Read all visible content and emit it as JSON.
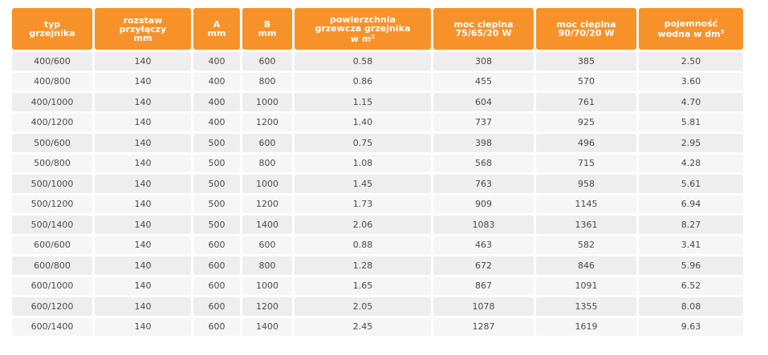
{
  "table": {
    "headers": [
      {
        "lines": [
          "typ",
          "grzejnika"
        ],
        "sup": ""
      },
      {
        "lines": [
          "rozstaw",
          "przyłączy",
          "mm"
        ],
        "sup": ""
      },
      {
        "lines": [
          "A",
          "mm"
        ],
        "sup": ""
      },
      {
        "lines": [
          "B",
          "mm"
        ],
        "sup": ""
      },
      {
        "lines": [
          "powierzchnia",
          "grzewcza grzejnika",
          "w m"
        ],
        "sup": "2"
      },
      {
        "lines": [
          "moc cieplna",
          "75/65/20 W"
        ],
        "sup": ""
      },
      {
        "lines": [
          "moc cieplna",
          "90/70/20 W"
        ],
        "sup": ""
      },
      {
        "lines": [
          "pojemność",
          "wodna w dm"
        ],
        "sup": "3"
      }
    ],
    "rows": [
      [
        "400/600",
        "140",
        "400",
        "600",
        "0.58",
        "308",
        "385",
        "2.50"
      ],
      [
        "400/800",
        "140",
        "400",
        "800",
        "0.86",
        "455",
        "570",
        "3.60"
      ],
      [
        "400/1000",
        "140",
        "400",
        "1000",
        "1.15",
        "604",
        "761",
        "4.70"
      ],
      [
        "400/1200",
        "140",
        "400",
        "1200",
        "1.40",
        "737",
        "925",
        "5.81"
      ],
      [
        "500/600",
        "140",
        "500",
        "600",
        "0.75",
        "398",
        "496",
        "2.95"
      ],
      [
        "500/800",
        "140",
        "500",
        "800",
        "1.08",
        "568",
        "715",
        "4.28"
      ],
      [
        "500/1000",
        "140",
        "500",
        "1000",
        "1.45",
        "763",
        "958",
        "5.61"
      ],
      [
        "500/1200",
        "140",
        "500",
        "1200",
        "1.73",
        "909",
        "1145",
        "6.94"
      ],
      [
        "500/1400",
        "140",
        "500",
        "1400",
        "2.06",
        "1083",
        "1361",
        "8.27"
      ],
      [
        "600/600",
        "140",
        "600",
        "600",
        "0.88",
        "463",
        "582",
        "3.41"
      ],
      [
        "600/800",
        "140",
        "600",
        "800",
        "1.28",
        "672",
        "846",
        "5.96"
      ],
      [
        "600/1000",
        "140",
        "600",
        "1000",
        "1.65",
        "867",
        "1091",
        "6.52"
      ],
      [
        "600/1200",
        "140",
        "600",
        "1200",
        "2.05",
        "1078",
        "1355",
        "8.08"
      ],
      [
        "600/1400",
        "140",
        "600",
        "1400",
        "2.45",
        "1287",
        "1619",
        "9.63"
      ]
    ]
  },
  "colors": {
    "header_bg": "#f7922a",
    "header_text": "#ffffff",
    "row_odd": "#eeeeee",
    "row_even": "#f6f6f6",
    "cell_text": "#4a4a4a"
  }
}
